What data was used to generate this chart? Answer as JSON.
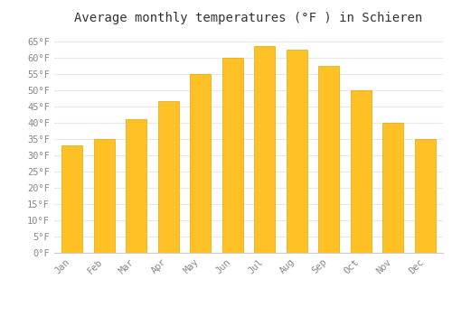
{
  "title": "Average monthly temperatures (°F ) in Schieren",
  "months": [
    "Jan",
    "Feb",
    "Mar",
    "Apr",
    "May",
    "Jun",
    "Jul",
    "Aug",
    "Sep",
    "Oct",
    "Nov",
    "Dec"
  ],
  "values": [
    33,
    35,
    41,
    46.5,
    55,
    60,
    63.5,
    62.5,
    57.5,
    50,
    40,
    35
  ],
  "bar_color": "#FFC125",
  "bar_edge_color": "#E0A800",
  "ylim": [
    0,
    68
  ],
  "yticks": [
    0,
    5,
    10,
    15,
    20,
    25,
    30,
    35,
    40,
    45,
    50,
    55,
    60,
    65
  ],
  "ytick_labels": [
    "0°F",
    "5°F",
    "10°F",
    "15°F",
    "20°F",
    "25°F",
    "30°F",
    "35°F",
    "40°F",
    "45°F",
    "50°F",
    "55°F",
    "60°F",
    "65°F"
  ],
  "bg_color": "#ffffff",
  "plot_bg_color": "#ffffff",
  "grid_color": "#e8e8e8",
  "title_fontsize": 10,
  "tick_fontsize": 7.5,
  "tick_color": "#888888",
  "font_family": "monospace"
}
